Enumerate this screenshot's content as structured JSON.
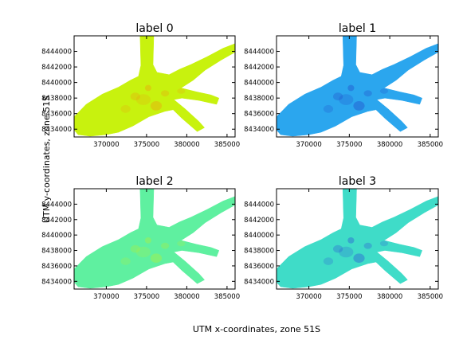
{
  "figure": {
    "xlabel": "UTM x-coordinates, zone 51S",
    "ylabel": "UTM y-coordinates, zone 51S"
  },
  "chart_data": {
    "type": "heatmap",
    "xlim": [
      366000,
      386000
    ],
    "ylim": [
      8433000,
      8446000
    ],
    "xticks": [
      370000,
      375000,
      380000,
      385000
    ],
    "yticks": [
      8434000,
      8436000,
      8438000,
      8440000,
      8442000,
      8444000
    ],
    "grid": false,
    "colormap": "jet",
    "panels": [
      {
        "title": "label 0",
        "base_color": "#c8f20e",
        "accent_color": "#ee9a10"
      },
      {
        "title": "label 1",
        "base_color": "#2ba6ee",
        "accent_color": "#2244c8"
      },
      {
        "title": "label 2",
        "base_color": "#5ff0a0",
        "accent_color": "#b6f032"
      },
      {
        "title": "label 3",
        "base_color": "#3fdcc8",
        "accent_color": "#2a4fd6"
      }
    ]
  }
}
